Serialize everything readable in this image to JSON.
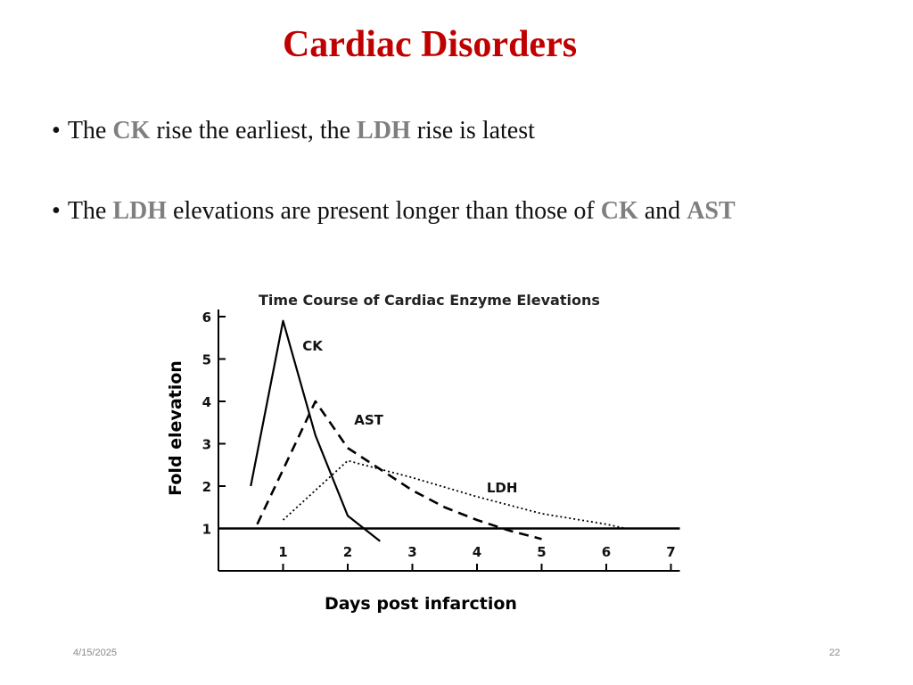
{
  "slide": {
    "title": "Cardiac Disorders",
    "bullets": [
      {
        "parts": [
          {
            "text": "The ",
            "hl": false
          },
          {
            "text": "CK",
            "hl": true
          },
          {
            "text": " rise the earliest, the ",
            "hl": false
          },
          {
            "text": "LDH",
            "hl": true
          },
          {
            "text": " rise is latest",
            "hl": false
          }
        ]
      },
      {
        "parts": [
          {
            "text": "The ",
            "hl": false
          },
          {
            "text": "LDH",
            "hl": true
          },
          {
            "text": " elevations are present longer than those of ",
            "hl": false
          },
          {
            "text": "CK",
            "hl": true
          },
          {
            "text": " and ",
            "hl": false
          },
          {
            "text": "AST",
            "hl": true
          }
        ]
      }
    ],
    "bullet_marker": "•",
    "footer_date": "4/15/2025",
    "footer_page": "22"
  },
  "colors": {
    "title": "#c00000",
    "highlight": "#7f7f7f",
    "line": "#000000"
  },
  "chart_data": {
    "type": "line",
    "title": "Time Course of Cardiac Enzyme Elevations",
    "xlabel": "Days post infarction",
    "ylabel": "Fold elevation",
    "xlim": [
      0,
      7
    ],
    "ylim": [
      0,
      6
    ],
    "xticks": [
      1,
      2,
      3,
      4,
      5,
      6,
      7
    ],
    "yticks": [
      1,
      2,
      3,
      4,
      5,
      6
    ],
    "baseline": 1,
    "series": [
      {
        "name": "CK",
        "style": "solid",
        "x": [
          0.5,
          1.0,
          1.5,
          2.0,
          2.5
        ],
        "y": [
          2.0,
          5.9,
          3.2,
          1.3,
          0.7
        ]
      },
      {
        "name": "AST",
        "style": "dashed",
        "x": [
          0.6,
          1.5,
          2.0,
          2.5,
          3.0,
          3.5,
          4.0,
          4.5,
          5.0
        ],
        "y": [
          1.1,
          4.0,
          2.9,
          2.4,
          1.9,
          1.5,
          1.2,
          0.95,
          0.75
        ]
      },
      {
        "name": "LDH",
        "style": "dotted",
        "x": [
          1.0,
          2.0,
          3.0,
          4.0,
          5.0,
          6.0,
          6.3
        ],
        "y": [
          1.2,
          2.6,
          2.2,
          1.75,
          1.35,
          1.1,
          1.0
        ]
      }
    ]
  }
}
